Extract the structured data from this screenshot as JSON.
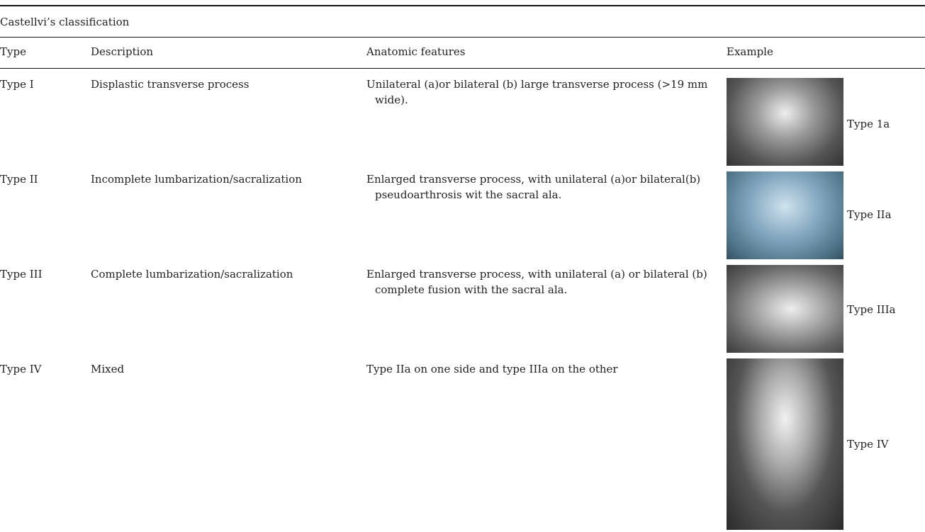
{
  "table": {
    "title": "Castellvi’s classification",
    "header": [
      "Type",
      "Description",
      "Anatomic features",
      "Example"
    ],
    "rows": [
      [
        "Type I",
        "Displastic transverse process",
        "Unilateral (a)or bilateral (b) large transverse process (>19 mm wide).",
        "Type 1a"
      ],
      [
        "Type II",
        "Incomplete lumbarization/sacralization",
        "Enlarged transverse process, with unilateral (a)or bilateral(b) pseudoarthrosis wit the sacral ala.",
        "Type IIa"
      ],
      [
        "Type III",
        "Complete lumbarization/sacralization",
        "Enlarged transverse process, with unilateral (a) or bilateral (b) complete fusion with the sacral ala.",
        "Type IIIa"
      ],
      [
        "Type IV",
        "Mixed",
        "Type IIa on one side and type IIIa on the other",
        "Type IV"
      ]
    ]
  }
}
